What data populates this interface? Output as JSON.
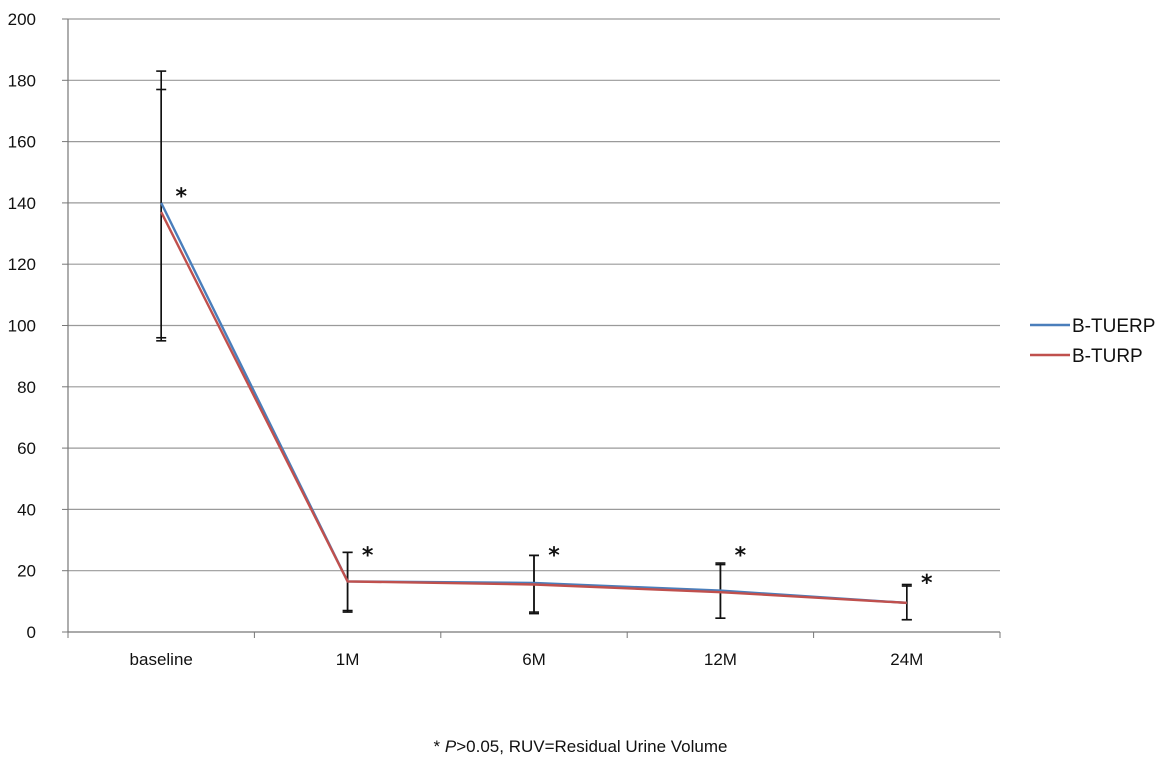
{
  "chart_data": {
    "type": "line",
    "categories": [
      "baseline",
      "1M",
      "6M",
      "12M",
      "24M"
    ],
    "ylim": [
      0,
      200
    ],
    "yticks": [
      0,
      20,
      40,
      60,
      80,
      100,
      120,
      140,
      160,
      180,
      200
    ],
    "grid": true,
    "legend_position": "right",
    "series": [
      {
        "name": "B-TUERP",
        "color": "#4a7ebb",
        "values": [
          140,
          16.5,
          16,
          13.5,
          9.5
        ],
        "error_bars": [
          [
            96,
            183
          ],
          [
            7,
            26
          ],
          [
            6.5,
            25
          ],
          [
            4.5,
            22.5
          ],
          [
            4,
            15.5
          ]
        ]
      },
      {
        "name": "B-TURP",
        "color": "#c0504d",
        "values": [
          137,
          16.5,
          15.5,
          13,
          9.5
        ],
        "error_bars": [
          [
            95,
            177
          ],
          [
            6.5,
            26
          ],
          [
            6,
            25
          ],
          [
            4.5,
            22
          ],
          [
            4,
            15
          ]
        ]
      }
    ],
    "annotations": [
      {
        "category": "baseline",
        "text": "*",
        "y": 143
      },
      {
        "category": "1M",
        "text": "*",
        "y": 26
      },
      {
        "category": "6M",
        "text": "*",
        "y": 26
      },
      {
        "category": "12M",
        "text": "*",
        "y": 26
      },
      {
        "category": "24M",
        "text": "*",
        "y": 17
      }
    ]
  },
  "footnote": {
    "star": "*",
    "p_symbol": "P",
    "rest": ">0.05, RUV=Residual Urine Volume"
  }
}
